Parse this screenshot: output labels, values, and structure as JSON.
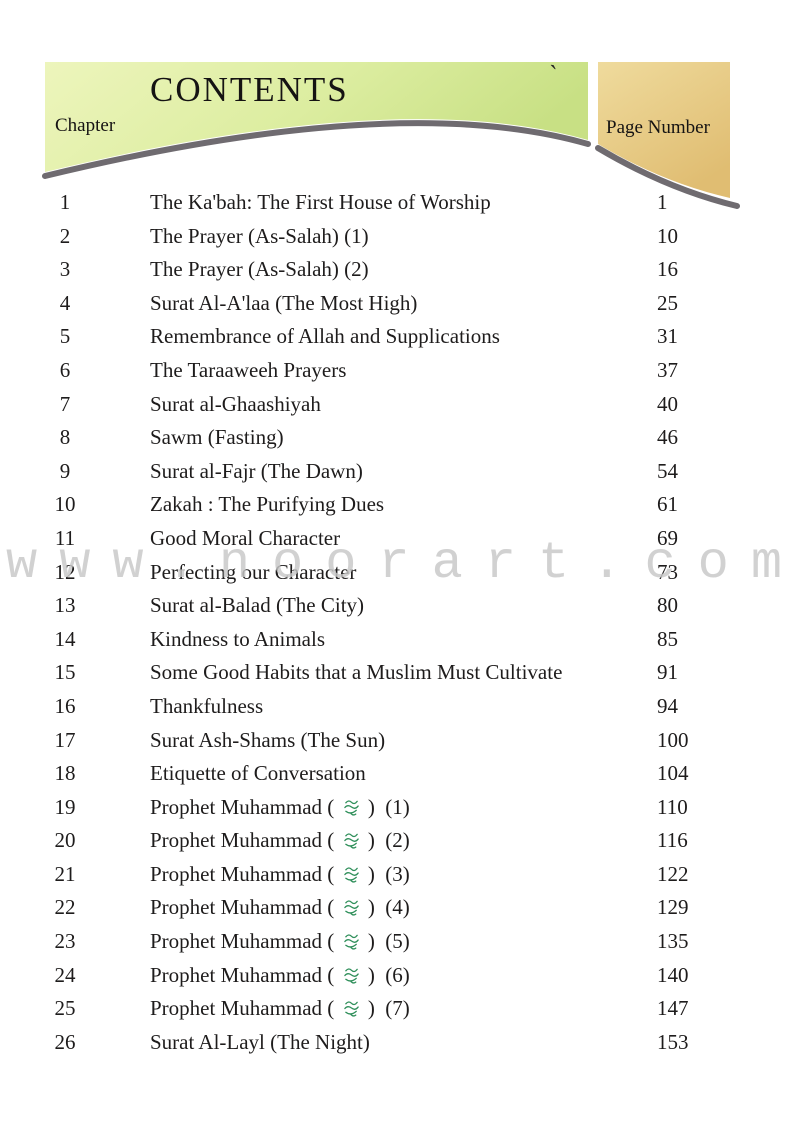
{
  "header": {
    "title": "CONTENTS",
    "chapter_column_label": "Chapter",
    "page_column_label": "Page Number",
    "tick_mark": "`",
    "green_banner_color_from": "#edf5bc",
    "green_banner_color_to": "#c8e084",
    "tan_banner_color_from": "#efdb9d",
    "tan_banner_color_to": "#e0bd72",
    "swoosh_shadow_color": "#6f6b70"
  },
  "watermark": {
    "text": "www.noorart.com",
    "color": "#c8c8c8"
  },
  "sas_symbol": {
    "name": "sallallahu alayhi wa sallam",
    "char": "ﷺ",
    "color": "#2f8f5a"
  },
  "chapters": [
    {
      "num": "1",
      "title": "The Ka'bah: The First House of Worship",
      "page": "1"
    },
    {
      "num": "2",
      "title": "The Prayer (As-Salah) (1)",
      "page": "10"
    },
    {
      "num": "3",
      "title": "The Prayer (As-Salah) (2)",
      "page": "16"
    },
    {
      "num": "4",
      "title": "Surat Al-A'laa (The Most High)",
      "page": "25"
    },
    {
      "num": "5",
      "title": "Remembrance of Allah and Supplications",
      "page": "31"
    },
    {
      "num": "6",
      "title": "The Taraaweeh Prayers",
      "page": "37"
    },
    {
      "num": "7",
      "title": "Surat al-Ghaashiyah",
      "page": "40"
    },
    {
      "num": "8",
      "title": "Sawm (Fasting)",
      "page": "46"
    },
    {
      "num": "9",
      "title": "Surat al-Fajr (The Dawn)",
      "page": "54"
    },
    {
      "num": "10",
      "title": "Zakah : The Purifying Dues",
      "page": "61"
    },
    {
      "num": "11",
      "title": "Good Moral Character",
      "page": "69"
    },
    {
      "num": "12",
      "title": "Perfecting our Character",
      "page": "73"
    },
    {
      "num": "13",
      "title": "Surat al-Balad (The City)",
      "page": "80"
    },
    {
      "num": "14",
      "title": "Kindness to Animals",
      "page": "85"
    },
    {
      "num": "15",
      "title": "Some Good Habits that a Muslim Must Cultivate",
      "page": "91"
    },
    {
      "num": "16",
      "title": "Thankfulness",
      "page": "94"
    },
    {
      "num": "17",
      "title": "Surat Ash-Shams (The Sun)",
      "page": "100"
    },
    {
      "num": "18",
      "title": "Etiquette of Conversation",
      "page": "104"
    },
    {
      "num": "19",
      "title_prefix": "Prophet Muhammad (",
      "title_suffix": ")  (1)",
      "has_symbol": true,
      "page": "110"
    },
    {
      "num": "20",
      "title_prefix": "Prophet Muhammad (",
      "title_suffix": ")  (2)",
      "has_symbol": true,
      "page": "116"
    },
    {
      "num": "21",
      "title_prefix": "Prophet Muhammad (",
      "title_suffix": ")  (3)",
      "has_symbol": true,
      "page": "122"
    },
    {
      "num": "22",
      "title_prefix": "Prophet Muhammad (",
      "title_suffix": ")  (4)",
      "has_symbol": true,
      "page": "129"
    },
    {
      "num": "23",
      "title_prefix": "Prophet Muhammad (",
      "title_suffix": ")  (5)",
      "has_symbol": true,
      "page": "135"
    },
    {
      "num": "24",
      "title_prefix": "Prophet Muhammad (",
      "title_suffix": ")  (6)",
      "has_symbol": true,
      "page": "140"
    },
    {
      "num": "25",
      "title_prefix": "Prophet Muhammad (",
      "title_suffix": ")  (7)",
      "has_symbol": true,
      "page": "147"
    },
    {
      "num": "26",
      "title": "Surat Al-Layl (The Night)",
      "page": "153"
    }
  ]
}
